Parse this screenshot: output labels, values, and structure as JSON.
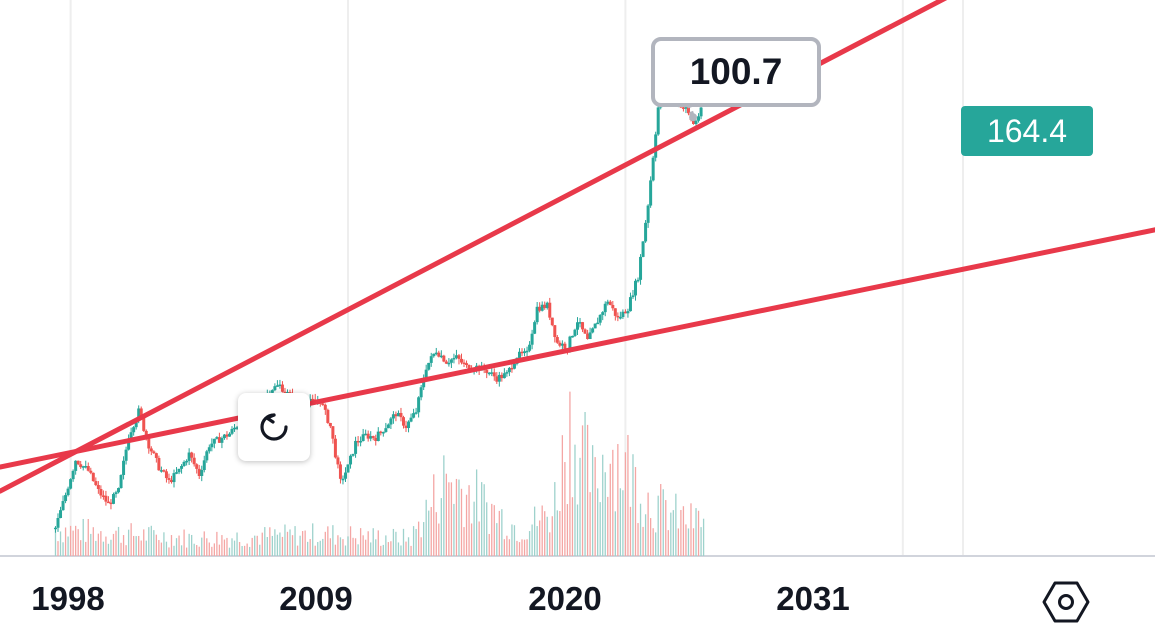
{
  "chart_data": {
    "type": "candlestick",
    "x_tick_labels": [
      "1998",
      "2009",
      "2020",
      "2031"
    ],
    "x_ticks": [
      1998,
      2009,
      2020,
      2031
    ],
    "xlim": [
      1995.2,
      2041
    ],
    "ylim": [
      0,
      300
    ],
    "grid": true,
    "up_color": "#26a69a",
    "down_color": "#ef5350",
    "price_series": {
      "name": "",
      "x": [
        1997.4,
        1997.8,
        1998.2,
        1998.7,
        1999.1,
        1999.5,
        1999.9,
        2000.3,
        2000.7,
        2001.1,
        2001.5,
        2001.9,
        2002.3,
        2002.7,
        2003.1,
        2003.5,
        2003.9,
        2004.3,
        2004.7,
        2005.1,
        2005.5,
        2005.9,
        2006.3,
        2006.7,
        2007.1,
        2007.5,
        2007.9,
        2008.3,
        2008.7,
        2009.0,
        2009.3,
        2009.7,
        2010.1,
        2010.5,
        2010.9,
        2011.3,
        2011.7,
        2012.1,
        2012.5,
        2012.9,
        2013.3,
        2013.7,
        2014.1,
        2014.5,
        2014.9,
        2015.3,
        2015.7,
        2016.1,
        2016.5,
        2016.9,
        2017.3,
        2017.7,
        2018.1,
        2018.5,
        2018.9,
        2019.3,
        2019.7,
        2020.1,
        2020.5,
        2020.9,
        2021.3,
        2021.7,
        2022.0,
        2022.4,
        2022.7,
        2023.0
      ],
      "values": [
        15,
        33,
        52,
        46,
        35,
        28,
        35,
        65,
        78,
        60,
        48,
        40,
        46,
        55,
        44,
        60,
        63,
        66,
        72,
        69,
        78,
        90,
        92,
        86,
        83,
        83,
        84,
        70,
        40,
        48,
        61,
        65,
        64,
        70,
        77,
        70,
        78,
        102,
        111,
        105,
        107,
        102,
        102,
        100,
        96,
        98,
        108,
        109,
        134,
        135,
        115,
        113,
        127,
        116,
        127,
        138,
        128,
        134,
        151,
        190,
        242,
        262,
        246,
        241,
        233,
        240
      ]
    },
    "volume_series": {
      "name": "",
      "x": [
        1997.6,
        2003.0,
        2008.0,
        2011.5,
        2012.9,
        2015.8,
        2017.1,
        2017.8,
        2018.8,
        2019.3,
        2020.1,
        2021.0,
        2022.5
      ],
      "values": [
        6,
        4,
        5,
        4,
        18,
        6,
        10,
        30,
        16,
        25,
        20,
        12,
        8
      ]
    },
    "trendlines": [
      {
        "x": [
          1995.2,
          2041
        ],
        "y": [
          35,
          360
        ]
      },
      {
        "x": [
          1995.2,
          2041
        ],
        "y": [
          48,
          176
        ]
      }
    ],
    "price_label": "164.4",
    "callout_label": "100.7"
  },
  "colors": {
    "trendline": "#e8394a",
    "badge": "#26a69a",
    "grid": "#eeeeee"
  },
  "icons": {
    "reset": "reset-icon",
    "settings": "settings-icon"
  }
}
